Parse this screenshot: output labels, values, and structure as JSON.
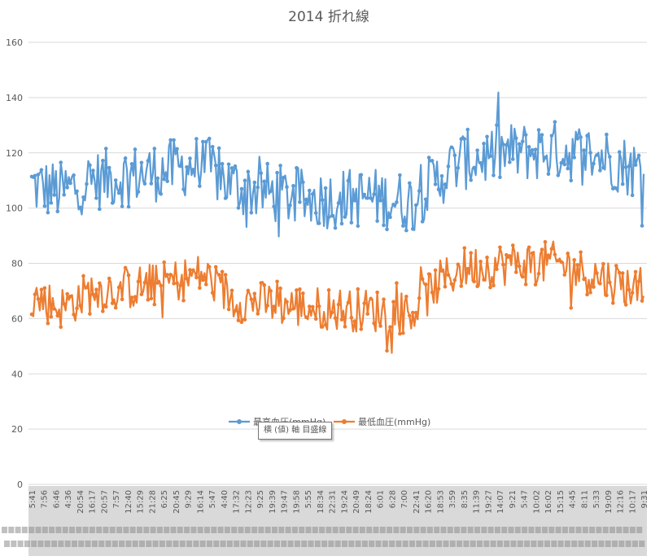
{
  "chart_data": {
    "type": "line",
    "title": "2014 折れ線",
    "ylim": [
      0,
      160
    ],
    "yticks": [
      0,
      20,
      40,
      60,
      80,
      100,
      120,
      140,
      160
    ],
    "grid": true,
    "legend_position": "inside-center",
    "x_tick_labels": [
      "5:41",
      "7:56",
      "6:46",
      "4:36",
      "20:54",
      "16:17",
      "20:57",
      "7:57",
      "12:40",
      "15:29",
      "21:28",
      "6:25",
      "20:45",
      "9:29",
      "16:14",
      "5:47",
      "4:40",
      "17:32",
      "12:23",
      "9:25",
      "19:39",
      "19:47",
      "19:58",
      "5:55",
      "18:34",
      "22:31",
      "19:24",
      "20:49",
      "18:24",
      "6:01",
      "6:28",
      "7:00",
      "22:41",
      "16:20",
      "18:53",
      "3:59",
      "8:35",
      "11:39",
      "19:27",
      "14:07",
      "9:21",
      "5:47",
      "10:02",
      "16:02",
      "15:15",
      "4:45",
      "8:11",
      "5:33",
      "19:09",
      "12:16",
      "10:17",
      "9:31"
    ],
    "x_date_row_note": "overlapping date labels",
    "series": [
      {
        "name": "最高血圧(mmHg)",
        "color": "#5B9BD5",
        "profile": [
          [
            0,
            108
          ],
          [
            0.05,
            106
          ],
          [
            0.1,
            110
          ],
          [
            0.2,
            113
          ],
          [
            0.28,
            116
          ],
          [
            0.33,
            108
          ],
          [
            0.45,
            103
          ],
          [
            0.55,
            104
          ],
          [
            0.62,
            102
          ],
          [
            0.66,
            110
          ],
          [
            0.7,
            117
          ],
          [
            0.78,
            120
          ],
          [
            0.86,
            121
          ],
          [
            0.93,
            119
          ],
          [
            1,
            113
          ]
        ],
        "spread": 11,
        "max": 151
      },
      {
        "name": "最低血圧(mmHg)",
        "color": "#ED7D31",
        "profile": [
          [
            0,
            68
          ],
          [
            0.05,
            64
          ],
          [
            0.1,
            70
          ],
          [
            0.2,
            72
          ],
          [
            0.28,
            76
          ],
          [
            0.33,
            67
          ],
          [
            0.45,
            64
          ],
          [
            0.55,
            63
          ],
          [
            0.62,
            62
          ],
          [
            0.66,
            72
          ],
          [
            0.7,
            78
          ],
          [
            0.78,
            80
          ],
          [
            0.86,
            80
          ],
          [
            0.93,
            75
          ],
          [
            1,
            70
          ]
        ],
        "spread": 8,
        "max": 105,
        "min": 40
      }
    ]
  },
  "tooltip": {
    "text": "横 (値) 軸 目盛線"
  }
}
